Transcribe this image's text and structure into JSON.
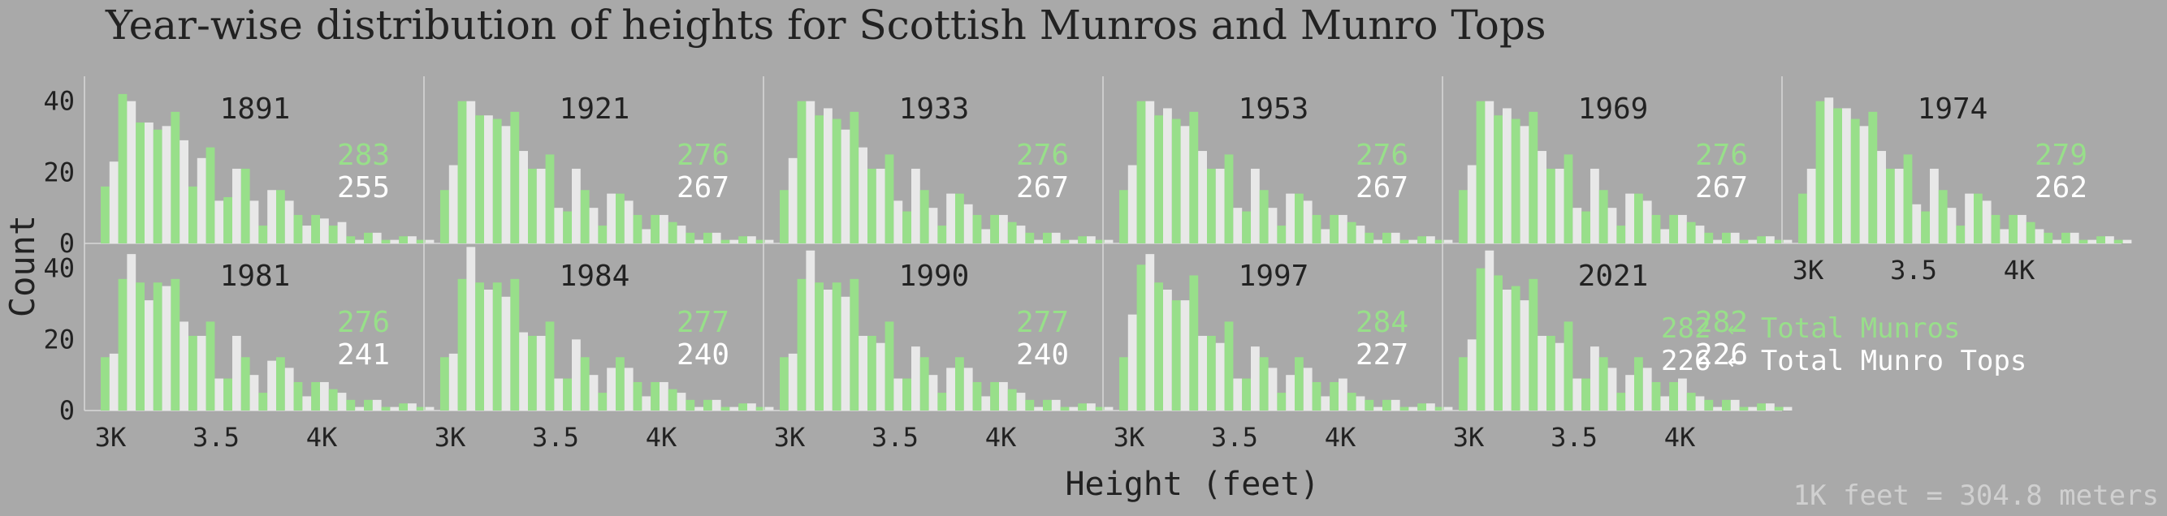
{
  "title": "Year-wise distribution of heights for Scottish Munros and Munro Tops",
  "footnote": "1K feet = 304.8 meters",
  "legend": {
    "munros_label": "← Total Munros",
    "tops_label": "← Total Munro Tops"
  },
  "colors": {
    "background": "#a9a9a9",
    "munros": "#98df8a",
    "tops": "#e8e8e8",
    "text": "#222222",
    "footnote": "#d0d0d0"
  },
  "chart_data": {
    "type": "bar",
    "xlabel": "Height (feet)",
    "ylabel": "Count",
    "x_ticks": [
      "3K",
      "3.5",
      "4K"
    ],
    "y_ticks": [
      0,
      20,
      40
    ],
    "ylim": [
      0,
      47
    ],
    "bin_start_feet": 3000,
    "bin_width_feet": 50,
    "series_names": [
      "Munros",
      "Munro Tops"
    ],
    "panels": [
      {
        "year": "1891",
        "total_munros": 283,
        "total_tops": 255,
        "munros": [
          16,
          42,
          34,
          32,
          37,
          16,
          27,
          13,
          21,
          5,
          15,
          8,
          8,
          5,
          2,
          3,
          1,
          2,
          1,
          0
        ],
        "tops": [
          23,
          40,
          34,
          33,
          29,
          24,
          12,
          21,
          12,
          15,
          12,
          5,
          7,
          6,
          1,
          3,
          1,
          2,
          1,
          0
        ]
      },
      {
        "year": "1921",
        "total_munros": 276,
        "total_tops": 267,
        "munros": [
          15,
          40,
          36,
          35,
          37,
          21,
          25,
          9,
          15,
          5,
          14,
          8,
          8,
          6,
          3,
          3,
          1,
          2,
          1,
          0
        ],
        "tops": [
          22,
          40,
          36,
          33,
          26,
          21,
          10,
          21,
          10,
          14,
          12,
          4,
          8,
          5,
          1,
          3,
          1,
          2,
          1,
          0
        ]
      },
      {
        "year": "1933",
        "total_munros": 276,
        "total_tops": 267,
        "munros": [
          15,
          40,
          36,
          35,
          37,
          21,
          25,
          9,
          15,
          5,
          14,
          8,
          8,
          6,
          3,
          3,
          1,
          2,
          1,
          0
        ],
        "tops": [
          24,
          40,
          38,
          32,
          27,
          21,
          12,
          21,
          10,
          14,
          11,
          4,
          8,
          5,
          1,
          3,
          1,
          2,
          1,
          0
        ]
      },
      {
        "year": "1953",
        "total_munros": 276,
        "total_tops": 267,
        "munros": [
          15,
          40,
          36,
          35,
          37,
          21,
          25,
          9,
          15,
          5,
          14,
          8,
          8,
          6,
          3,
          3,
          1,
          2,
          1,
          0
        ],
        "tops": [
          22,
          40,
          38,
          33,
          26,
          21,
          10,
          21,
          10,
          14,
          12,
          4,
          8,
          5,
          1,
          3,
          1,
          2,
          1,
          0
        ]
      },
      {
        "year": "1969",
        "total_munros": 276,
        "total_tops": 267,
        "munros": [
          15,
          40,
          36,
          35,
          37,
          21,
          25,
          9,
          15,
          5,
          14,
          8,
          8,
          6,
          3,
          3,
          1,
          2,
          1,
          0
        ],
        "tops": [
          22,
          40,
          38,
          33,
          26,
          21,
          10,
          21,
          10,
          14,
          12,
          4,
          8,
          5,
          1,
          3,
          1,
          2,
          1,
          0
        ]
      },
      {
        "year": "1974",
        "total_munros": 279,
        "total_tops": 262,
        "munros": [
          14,
          40,
          38,
          35,
          37,
          21,
          25,
          9,
          15,
          5,
          14,
          8,
          8,
          6,
          3,
          3,
          1,
          2,
          1,
          0
        ],
        "tops": [
          21,
          41,
          38,
          33,
          26,
          21,
          11,
          21,
          10,
          14,
          12,
          4,
          8,
          4,
          1,
          3,
          1,
          2,
          1,
          0
        ]
      },
      {
        "year": "1981",
        "total_munros": 276,
        "total_tops": 241,
        "munros": [
          15,
          37,
          36,
          36,
          37,
          21,
          25,
          9,
          15,
          5,
          15,
          8,
          8,
          6,
          3,
          3,
          1,
          2,
          1,
          0
        ],
        "tops": [
          16,
          44,
          31,
          35,
          25,
          21,
          9,
          21,
          10,
          14,
          12,
          4,
          8,
          5,
          1,
          3,
          1,
          2,
          1,
          0
        ]
      },
      {
        "year": "1984",
        "total_munros": 277,
        "total_tops": 240,
        "munros": [
          15,
          37,
          36,
          36,
          37,
          21,
          25,
          9,
          15,
          5,
          15,
          8,
          8,
          6,
          3,
          3,
          1,
          2,
          1,
          0
        ],
        "tops": [
          16,
          46,
          34,
          32,
          22,
          21,
          9,
          20,
          10,
          12,
          12,
          4,
          8,
          5,
          1,
          3,
          1,
          2,
          1,
          0
        ]
      },
      {
        "year": "1990",
        "total_munros": 277,
        "total_tops": 240,
        "munros": [
          15,
          37,
          36,
          36,
          37,
          21,
          25,
          9,
          15,
          5,
          15,
          8,
          8,
          6,
          3,
          3,
          1,
          2,
          1,
          0
        ],
        "tops": [
          16,
          45,
          34,
          32,
          21,
          19,
          9,
          18,
          10,
          12,
          12,
          4,
          8,
          5,
          1,
          3,
          1,
          2,
          1,
          0
        ]
      },
      {
        "year": "1997",
        "total_munros": 284,
        "total_tops": 227,
        "munros": [
          15,
          41,
          36,
          31,
          38,
          21,
          25,
          9,
          15,
          5,
          15,
          8,
          8,
          5,
          3,
          3,
          1,
          2,
          1,
          0
        ],
        "tops": [
          27,
          44,
          34,
          31,
          21,
          19,
          9,
          18,
          12,
          10,
          12,
          4,
          9,
          4,
          1,
          3,
          1,
          2,
          1,
          0
        ]
      },
      {
        "year": "2021",
        "total_munros": 282,
        "total_tops": 226,
        "munros": [
          15,
          40,
          38,
          35,
          37,
          21,
          25,
          9,
          15,
          5,
          15,
          8,
          8,
          5,
          3,
          3,
          1,
          2,
          1,
          0
        ],
        "tops": [
          20,
          45,
          34,
          31,
          21,
          19,
          9,
          18,
          12,
          10,
          12,
          4,
          9,
          4,
          1,
          3,
          1,
          2,
          1,
          0
        ]
      }
    ]
  }
}
